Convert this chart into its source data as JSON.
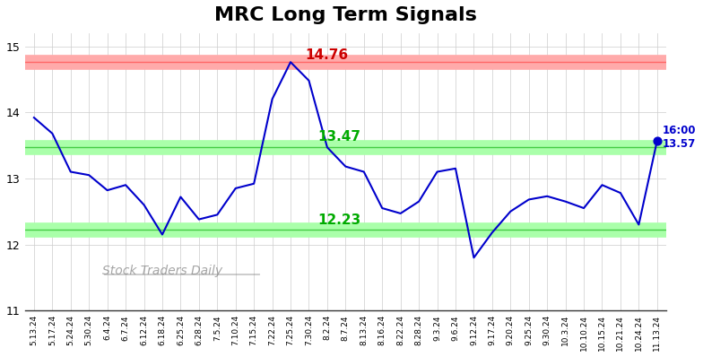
{
  "title": "MRC Long Term Signals",
  "xlabels": [
    "5.13.24",
    "5.17.24",
    "5.24.24",
    "5.30.24",
    "6.4.24",
    "6.7.24",
    "6.12.24",
    "6.18.24",
    "6.25.24",
    "6.28.24",
    "7.5.24",
    "7.10.24",
    "7.15.24",
    "7.22.24",
    "7.25.24",
    "7.30.24",
    "8.2.24",
    "8.7.24",
    "8.13.24",
    "8.16.24",
    "8.22.24",
    "8.28.24",
    "9.3.24",
    "9.6.24",
    "9.12.24",
    "9.17.24",
    "9.20.24",
    "9.25.24",
    "9.30.24",
    "10.3.24",
    "10.10.24",
    "10.15.24",
    "10.21.24",
    "10.24.24",
    "11.13.24"
  ],
  "yvalues": [
    13.92,
    13.68,
    13.1,
    13.05,
    12.82,
    12.9,
    12.6,
    12.15,
    12.72,
    12.38,
    12.45,
    12.85,
    12.92,
    14.2,
    14.76,
    14.48,
    13.47,
    13.18,
    13.1,
    12.55,
    12.47,
    12.65,
    13.1,
    13.15,
    11.8,
    12.18,
    12.5,
    12.68,
    12.73,
    12.65,
    12.55,
    12.9,
    12.78,
    12.3,
    13.57
  ],
  "ylim": [
    11,
    15.2
  ],
  "yticks": [
    11,
    12,
    13,
    14,
    15
  ],
  "hline_red": 14.76,
  "hline_green_upper": 13.47,
  "hline_green_lower": 12.23,
  "red_hline_color": "#ffaaaa",
  "green_hline_color": "#aaffaa",
  "line_color": "#0000cc",
  "annotation_max_label": "14.76",
  "annotation_max_color": "#cc0000",
  "annotation_mid_label": "13.47",
  "annotation_mid_color": "#00aa00",
  "annotation_min_label": "12.23",
  "annotation_min_color": "#00aa00",
  "last_label": "16:00",
  "last_value_label": "13.57",
  "watermark": "Stock Traders Daily",
  "background_color": "#ffffff",
  "grid_color": "#cccccc",
  "title_fontsize": 16
}
